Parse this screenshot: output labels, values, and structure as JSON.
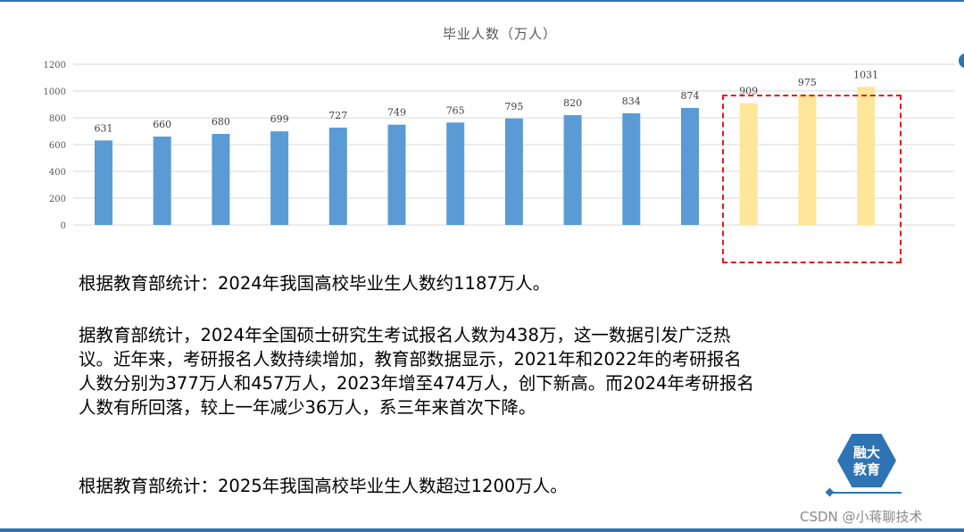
{
  "chart_data": {
    "type": "bar",
    "title": "毕业人数（万人）",
    "ylim": [
      0,
      1200
    ],
    "yticks": [
      0,
      200,
      400,
      600,
      800,
      1000,
      1200
    ],
    "grid": true,
    "values": [
      631,
      660,
      680,
      699,
      727,
      749,
      765,
      795,
      820,
      834,
      874,
      909,
      975,
      1031
    ],
    "bar_colors": [
      "#5b9bd5",
      "#5b9bd5",
      "#5b9bd5",
      "#5b9bd5",
      "#5b9bd5",
      "#5b9bd5",
      "#5b9bd5",
      "#5b9bd5",
      "#5b9bd5",
      "#5b9bd5",
      "#5b9bd5",
      "#ffe699",
      "#ffe699",
      "#ffe699"
    ],
    "highlight_last_n": 3
  },
  "colors": {
    "accent": "#2e74b5",
    "bar": "#5b9bd5",
    "highlight_bar": "#ffe699",
    "highlight_box": "#e41a1c"
  },
  "text": {
    "para1": "根据教育部统计：2024年我国高校毕业生人数约1187万人。",
    "para2": "据教育部统计，2024年全国硕士研究生考试报名人数为438万，这一数据引发广泛热议。近年来，考研报名人数持续增加，教育部数据显示，2021年和2022年的考研报名人数分别为377万人和457万人，2023年增至474万人，创下新高。而2024年考研报名人数有所回落，较上一年减少36万人，系三年来首次下降。",
    "para3": "根据教育部统计：2025年我国高校毕业生人数超过1200万人。"
  },
  "logo": {
    "line1": "融大",
    "line2": "教育"
  },
  "watermark": "CSDN @小蒋聊技术"
}
